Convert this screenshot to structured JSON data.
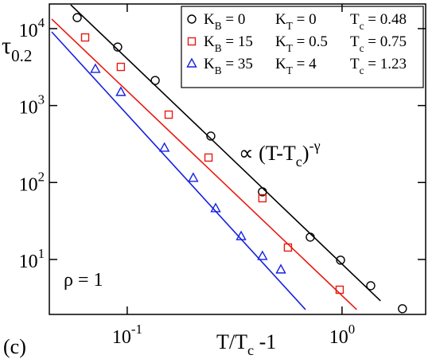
{
  "chart_data": {
    "type": "scatter",
    "xlabel": "T/T_c -1",
    "ylabel": "τ_{0.2}",
    "annotations": {
      "fit_law": "∝ (T-T_c)^{-γ}",
      "density": "ρ = 1",
      "panel": "(c)"
    },
    "xscale": "log",
    "yscale": "log",
    "xlim": [
      0.0434,
      2.45
    ],
    "ylim": [
      1.93,
      20900
    ],
    "xticks": [
      {
        "value": 0.1,
        "label": "10^{-1}"
      },
      {
        "value": 1,
        "label": "10^{0}"
      }
    ],
    "yticks": [
      {
        "value": 10,
        "label": "10^{1}"
      },
      {
        "value": 100,
        "label": "10^{2}"
      },
      {
        "value": 1000,
        "label": "10^{3}"
      },
      {
        "value": 10000,
        "label": "10^{4}"
      }
    ],
    "grid": false,
    "legend": "upper right",
    "series": [
      {
        "name": "K_B = 0",
        "k_t": "K_T = 0",
        "t_c": "T_c = 0.48",
        "color": "#000000",
        "marker": "circle",
        "x": [
          0.0585,
          0.0903,
          0.135,
          0.245,
          0.426,
          0.711,
          0.984,
          1.36,
          1.91
        ],
        "values": [
          13900,
          5770,
          2120,
          401,
          75.7,
          19.5,
          9.8,
          4.56,
          2.29
        ],
        "fit": {
          "x": [
            0.0546,
            1.51
          ],
          "values": [
            20400,
            2.9
          ]
        }
      },
      {
        "name": "K_B = 15",
        "k_t": "K_T = 0.5",
        "t_c": "T_c = 0.75",
        "color": "#e8190f",
        "marker": "square",
        "x": [
          0.0637,
          0.0934,
          0.156,
          0.239,
          0.426,
          0.56,
          0.975
        ],
        "values": [
          7680,
          3180,
          762,
          211,
          62.5,
          14.3,
          4.04
        ],
        "fit": {
          "x": [
            0.0445,
            1.17
          ],
          "values": [
            13300,
            2.23
          ]
        }
      },
      {
        "name": "K_B = 35",
        "k_t": "K_T = 4",
        "t_c": "T_c = 1.23",
        "color": "#1520e0",
        "marker": "triangle",
        "x": [
          0.0711,
          0.0934,
          0.149,
          0.203,
          0.258,
          0.339,
          0.426,
          0.519
        ],
        "values": [
          2970,
          1490,
          281,
          114,
          45.9,
          19.9,
          11.0,
          7.35
        ],
        "fit": {
          "x": [
            0.0445,
            0.676
          ],
          "values": [
            9080,
            2.23
          ]
        }
      }
    ]
  }
}
